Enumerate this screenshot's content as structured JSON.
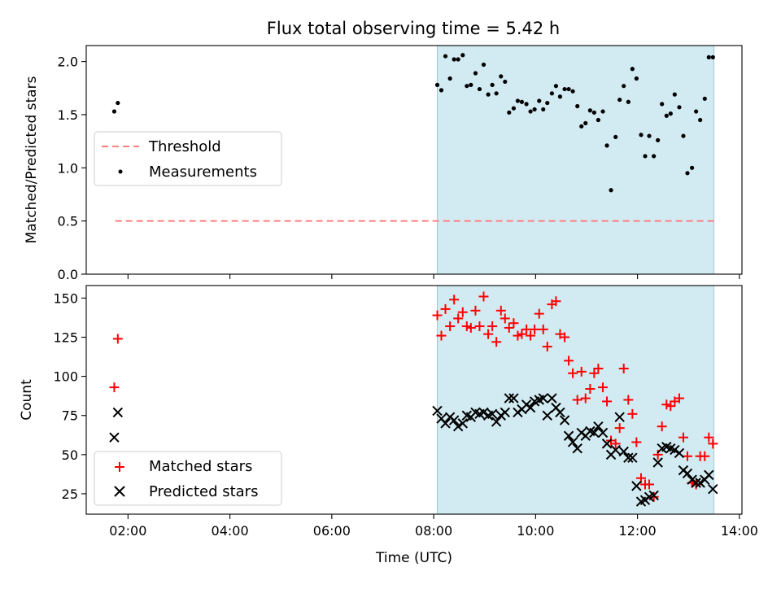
{
  "figure": {
    "title": "Flux total observing time = 5.42 h"
  },
  "chart_data": [
    {
      "type": "scatter",
      "panel": "top",
      "ylabel": "Matched/Predicted stars",
      "xlabel": "",
      "xlim": [
        1.18,
        14.05
      ],
      "ylim": [
        0,
        2.15
      ],
      "y_ticks": [
        0.0,
        0.5,
        1.0,
        1.5,
        2.0
      ],
      "y_tick_labels": [
        "0.0",
        "0.5",
        "1.0",
        "1.5",
        "2.0"
      ],
      "x_ticks": [
        2,
        4,
        6,
        8,
        10,
        12,
        14
      ],
      "shaded_span": {
        "from": 8.07,
        "to": 13.5,
        "color": "#add8e6"
      },
      "legend_placement": "center-left",
      "series": [
        {
          "name": "Threshold",
          "kind": "line",
          "style": "dashed",
          "color": "#ff7f7f",
          "x": [
            1.75,
            13.5
          ],
          "y": [
            0.5,
            0.5
          ]
        },
        {
          "name": "Measurements",
          "kind": "scatter",
          "marker": "dot",
          "color": "#000000",
          "x": [
            1.73,
            1.8,
            8.07,
            8.15,
            8.23,
            8.32,
            8.4,
            8.48,
            8.57,
            8.65,
            8.73,
            8.82,
            8.9,
            8.98,
            9.07,
            9.15,
            9.23,
            9.32,
            9.4,
            9.48,
            9.57,
            9.65,
            9.73,
            9.82,
            9.9,
            9.98,
            10.07,
            10.15,
            10.23,
            10.32,
            10.4,
            10.48,
            10.57,
            10.65,
            10.73,
            10.82,
            10.9,
            10.98,
            11.07,
            11.15,
            11.23,
            11.32,
            11.4,
            11.48,
            11.57,
            11.65,
            11.73,
            11.82,
            11.9,
            11.98,
            12.07,
            12.15,
            12.23,
            12.32,
            12.4,
            12.48,
            12.57,
            12.65,
            12.73,
            12.82,
            12.9,
            12.98,
            13.07,
            13.15,
            13.23,
            13.32,
            13.4,
            13.48
          ],
          "y": [
            1.53,
            1.61,
            1.78,
            1.73,
            2.05,
            1.84,
            2.02,
            2.02,
            2.06,
            1.77,
            1.78,
            1.89,
            1.74,
            1.97,
            1.69,
            1.78,
            1.7,
            1.86,
            1.81,
            1.52,
            1.56,
            1.63,
            1.62,
            1.6,
            1.53,
            1.55,
            1.63,
            1.55,
            1.61,
            1.7,
            1.77,
            1.67,
            1.74,
            1.74,
            1.72,
            1.58,
            1.39,
            1.42,
            1.54,
            1.52,
            1.45,
            1.53,
            1.21,
            0.79,
            1.29,
            1.64,
            1.77,
            1.62,
            1.93,
            1.84,
            1.31,
            1.11,
            1.3,
            1.11,
            1.26,
            1.6,
            1.49,
            1.51,
            1.69,
            1.57,
            1.3,
            0.95,
            1.0,
            1.53,
            1.45,
            1.65,
            2.04,
            2.04
          ]
        }
      ]
    },
    {
      "type": "scatter",
      "panel": "bottom",
      "ylabel": "Count",
      "xlabel": "Time (UTC)",
      "xlim": [
        1.18,
        14.05
      ],
      "ylim": [
        12,
        158
      ],
      "y_ticks": [
        25,
        50,
        75,
        100,
        125,
        150
      ],
      "y_tick_labels": [
        "25",
        "50",
        "75",
        "100",
        "125",
        "150"
      ],
      "x_ticks": [
        2,
        4,
        6,
        8,
        10,
        12,
        14
      ],
      "x_tick_labels": [
        "02:00",
        "04:00",
        "06:00",
        "08:00",
        "10:00",
        "12:00",
        "14:00"
      ],
      "shaded_span": {
        "from": 8.07,
        "to": 13.5,
        "color": "#add8e6"
      },
      "legend_placement": "lower-left",
      "series": [
        {
          "name": "Matched stars",
          "kind": "scatter",
          "marker": "plus",
          "color": "#ff0000",
          "x": [
            1.73,
            1.8,
            8.07,
            8.15,
            8.23,
            8.32,
            8.4,
            8.48,
            8.57,
            8.65,
            8.73,
            8.82,
            8.9,
            8.98,
            9.07,
            9.15,
            9.23,
            9.32,
            9.4,
            9.48,
            9.57,
            9.65,
            9.73,
            9.82,
            9.9,
            9.98,
            10.07,
            10.15,
            10.23,
            10.32,
            10.4,
            10.48,
            10.57,
            10.65,
            10.73,
            10.82,
            10.9,
            10.98,
            11.07,
            11.15,
            11.23,
            11.32,
            11.4,
            11.48,
            11.57,
            11.65,
            11.73,
            11.82,
            11.9,
            11.98,
            12.07,
            12.15,
            12.23,
            12.32,
            12.4,
            12.48,
            12.57,
            12.65,
            12.73,
            12.82,
            12.9,
            12.98,
            13.07,
            13.15,
            13.23,
            13.32,
            13.4,
            13.48
          ],
          "y": [
            93,
            124,
            139,
            126,
            143,
            132,
            149,
            137,
            141,
            132,
            131,
            142,
            132,
            151,
            127,
            132,
            122,
            142,
            137,
            131,
            134,
            126,
            127,
            130,
            126,
            130,
            140,
            130,
            119,
            146,
            148,
            127,
            125,
            110,
            102,
            85,
            103,
            86,
            92,
            102,
            105,
            93,
            84,
            59,
            57,
            67,
            105,
            85,
            76,
            58,
            35,
            31,
            31,
            23,
            50,
            68,
            82,
            81,
            84,
            86,
            61,
            49,
            32,
            31,
            49,
            49,
            61,
            57
          ]
        },
        {
          "name": "Predicted stars",
          "kind": "scatter",
          "marker": "cross",
          "color": "#000000",
          "x": [
            1.73,
            1.8,
            8.07,
            8.15,
            8.23,
            8.32,
            8.4,
            8.48,
            8.57,
            8.65,
            8.73,
            8.82,
            8.9,
            8.98,
            9.07,
            9.15,
            9.23,
            9.32,
            9.4,
            9.48,
            9.57,
            9.65,
            9.73,
            9.82,
            9.9,
            9.98,
            10.07,
            10.15,
            10.23,
            10.32,
            10.4,
            10.48,
            10.57,
            10.65,
            10.73,
            10.82,
            10.9,
            10.98,
            11.07,
            11.15,
            11.23,
            11.32,
            11.4,
            11.48,
            11.57,
            11.65,
            11.73,
            11.82,
            11.9,
            11.98,
            12.07,
            12.15,
            12.23,
            12.32,
            12.4,
            12.48,
            12.57,
            12.65,
            12.73,
            12.82,
            12.9,
            12.98,
            13.07,
            13.15,
            13.23,
            13.32,
            13.4,
            13.48
          ],
          "y": [
            61,
            77,
            78,
            73,
            70,
            74,
            72,
            68,
            70,
            75,
            74,
            77,
            76,
            77,
            75,
            76,
            71,
            75,
            77,
            86,
            86,
            77,
            79,
            82,
            80,
            84,
            85,
            86,
            75,
            86,
            80,
            77,
            72,
            62,
            58,
            54,
            64,
            62,
            65,
            64,
            68,
            64,
            57,
            50,
            53,
            74,
            52,
            48,
            48,
            30,
            20,
            21,
            23,
            24,
            45,
            54,
            55,
            54,
            53,
            51,
            40,
            38,
            34,
            32,
            32,
            34,
            37,
            28
          ]
        }
      ]
    }
  ]
}
